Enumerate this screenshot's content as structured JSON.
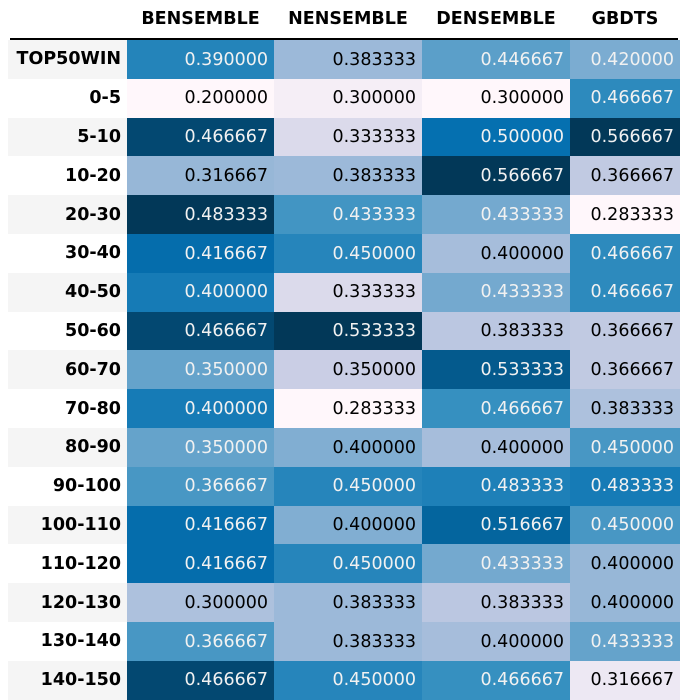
{
  "chart_data": {
    "type": "heatmap",
    "columns": [
      "BENSEMBLE",
      "NENSEMBLE",
      "DENSEMBLE",
      "GBDTS"
    ],
    "rows": [
      "TOP50WIN",
      "0-5",
      "5-10",
      "10-20",
      "20-30",
      "30-40",
      "40-50",
      "50-60",
      "60-70",
      "70-80",
      "80-90",
      "90-100",
      "100-110",
      "110-120",
      "120-130",
      "130-140",
      "140-150"
    ],
    "values": [
      [
        0.39,
        0.383333,
        0.446667,
        0.42
      ],
      [
        0.2,
        0.3,
        0.3,
        0.466667
      ],
      [
        0.466667,
        0.333333,
        0.5,
        0.566667
      ],
      [
        0.316667,
        0.383333,
        0.566667,
        0.366667
      ],
      [
        0.483333,
        0.433333,
        0.433333,
        0.283333
      ],
      [
        0.416667,
        0.45,
        0.4,
        0.466667
      ],
      [
        0.4,
        0.333333,
        0.433333,
        0.466667
      ],
      [
        0.466667,
        0.533333,
        0.383333,
        0.366667
      ],
      [
        0.35,
        0.35,
        0.533333,
        0.366667
      ],
      [
        0.4,
        0.283333,
        0.466667,
        0.383333
      ],
      [
        0.35,
        0.4,
        0.4,
        0.45
      ],
      [
        0.366667,
        0.45,
        0.483333,
        0.483333
      ],
      [
        0.416667,
        0.4,
        0.516667,
        0.45
      ],
      [
        0.416667,
        0.45,
        0.433333,
        0.4
      ],
      [
        0.3,
        0.383333,
        0.383333,
        0.4
      ],
      [
        0.366667,
        0.383333,
        0.4,
        0.433333
      ],
      [
        0.466667,
        0.45,
        0.466667,
        0.316667
      ]
    ],
    "value_format": "6 decimals",
    "colormap": "PuBu",
    "column_scaled": true,
    "row_stripes": [
      "#f5f5f5",
      "#ffffff"
    ]
  }
}
